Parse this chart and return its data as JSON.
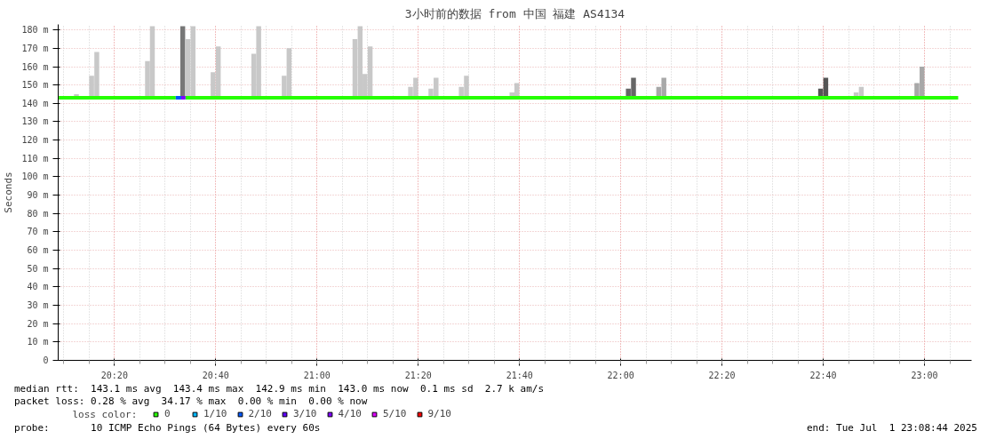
{
  "chart_data": {
    "type": "bar",
    "title": "3小时前的数据 from 中国 福建 AS4134",
    "ylabel": "Seconds",
    "legend_title": "loss color:",
    "legend": "bottom",
    "grid": true,
    "xlim": [
      20.148,
      23.155
    ],
    "xticks": [
      {
        "value": 20.3333,
        "label": "20:20"
      },
      {
        "value": 20.6667,
        "label": "20:40"
      },
      {
        "value": 21.0,
        "label": "21:00"
      },
      {
        "value": 21.3333,
        "label": "21:20"
      },
      {
        "value": 21.6667,
        "label": "21:40"
      },
      {
        "value": 22.0,
        "label": "22:00"
      },
      {
        "value": 22.3333,
        "label": "22:20"
      },
      {
        "value": 22.6667,
        "label": "22:40"
      },
      {
        "value": 23.0,
        "label": "23:00"
      }
    ],
    "ylim": [
      0,
      183
    ],
    "yticks": [
      {
        "value": 0,
        "label": "0"
      },
      {
        "value": 10,
        "label": "10 m"
      },
      {
        "value": 20,
        "label": "20 m"
      },
      {
        "value": 30,
        "label": "30 m"
      },
      {
        "value": 40,
        "label": "40 m"
      },
      {
        "value": 50,
        "label": "50 m"
      },
      {
        "value": 60,
        "label": "60 m"
      },
      {
        "value": 70,
        "label": "70 m"
      },
      {
        "value": 80,
        "label": "80 m"
      },
      {
        "value": 90,
        "label": "90 m"
      },
      {
        "value": 100,
        "label": "100 m"
      },
      {
        "value": 110,
        "label": "110 m"
      },
      {
        "value": 120,
        "label": "120 m"
      },
      {
        "value": 130,
        "label": "130 m"
      },
      {
        "value": 140,
        "label": "140 m"
      },
      {
        "value": 150,
        "label": "150 m"
      },
      {
        "value": 160,
        "label": "160 m"
      },
      {
        "value": 170,
        "label": "170 m"
      },
      {
        "value": 180,
        "label": "180 m"
      }
    ],
    "series": [
      {
        "x": [
          20.208,
          20.258,
          20.275,
          20.442,
          20.458,
          20.558,
          20.575,
          20.592,
          20.658,
          20.675,
          20.792,
          20.808,
          20.892,
          20.908,
          21.125,
          21.142,
          21.158,
          21.175,
          21.308,
          21.325,
          21.375,
          21.392,
          21.475,
          21.492,
          21.642,
          21.658,
          22.025,
          22.042,
          22.125,
          22.142,
          22.658,
          22.675,
          22.775,
          22.792,
          22.975,
          22.992
        ],
        "base": [
          143,
          143,
          143,
          143,
          143,
          143,
          143,
          143,
          143,
          143,
          143,
          143,
          143,
          143,
          143,
          143,
          143,
          143,
          143,
          143,
          143,
          143,
          143,
          143,
          143,
          143,
          143,
          143,
          143,
          143,
          143,
          143,
          143,
          143,
          143,
          143
        ],
        "values": [
          2,
          12,
          25,
          20,
          39,
          39,
          32,
          39,
          14,
          28,
          24,
          39,
          12,
          27,
          32,
          39,
          13,
          28,
          6,
          11,
          5,
          11,
          6,
          12,
          3,
          8,
          5,
          11,
          6,
          11,
          5,
          11,
          3,
          6,
          8,
          17
        ],
        "colors": [
          "#c8c8c8",
          "#c8c8c8",
          "#c8c8c8",
          "#c8c8c8",
          "#c8c8c8",
          "#777777",
          "#c8c8c8",
          "#c8c8c8",
          "#c8c8c8",
          "#c8c8c8",
          "#c8c8c8",
          "#c8c8c8",
          "#c8c8c8",
          "#c8c8c8",
          "#c8c8c8",
          "#c8c8c8",
          "#c8c8c8",
          "#c8c8c8",
          "#c8c8c8",
          "#c8c8c8",
          "#c8c8c8",
          "#c8c8c8",
          "#c8c8c8",
          "#c8c8c8",
          "#c8c8c8",
          "#c8c8c8",
          "#666666",
          "#666666",
          "#a8a8a8",
          "#a8a8a8",
          "#555555",
          "#555555",
          "#c8c8c8",
          "#c8c8c8",
          "#a8a8a8",
          "#a8a8a8"
        ]
      },
      {
        "type": "line",
        "name": "0",
        "color": "#26ff00",
        "x": [
          20.15,
          20.535,
          20.55,
          20.567,
          23.111
        ],
        "values": [
          143,
          143,
          null,
          143,
          143
        ]
      },
      {
        "type": "line",
        "name": "1/10",
        "color": "#00b8ff"
      },
      {
        "type": "line",
        "name": "2/10",
        "color": "#0059ff",
        "x": [
          20.535,
          20.553
        ],
        "values": [
          143,
          143
        ]
      },
      {
        "type": "line",
        "name": "3/10",
        "color": "#5e00ff"
      },
      {
        "type": "line",
        "name": "4/10",
        "color": "#7e00ff",
        "x": [
          20.553,
          20.567
        ],
        "values": [
          143,
          143
        ]
      },
      {
        "type": "line",
        "name": "5/10",
        "color": "#dd00ff"
      },
      {
        "type": "line",
        "name": "9/10",
        "color": "#ff0000"
      }
    ],
    "annotations": [
      "median rtt:  143.1 ms avg  143.4 ms max  142.9 ms min  143.0 ms now  0.1 ms sd  2.7 k am/s",
      "packet loss: 0.28 % avg  34.17 % max  0.00 % min  0.00 % now",
      "probe:       10 ICMP Echo Pings (64 Bytes) every 60s",
      "end: Tue Jul  1 23:08:44 2025"
    ]
  }
}
